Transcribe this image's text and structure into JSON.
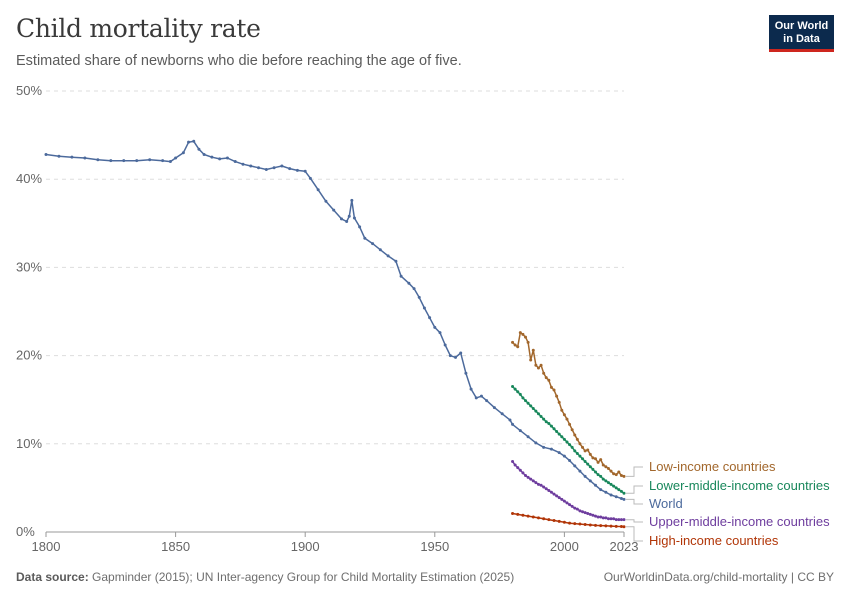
{
  "header": {
    "title": "Child mortality rate",
    "subtitle": "Estimated share of newborns who die before reaching the age of five.",
    "logo_line1": "Our World",
    "logo_line2": "in Data"
  },
  "footer": {
    "source_label": "Data source:",
    "source_text": " Gapminder (2015); UN Inter-agency Group for Child Mortality Estimation (2025)",
    "url_license": "OurWorldinData.org/child-mortality | CC BY"
  },
  "chart_data": {
    "type": "line",
    "title": "Child mortality rate",
    "subtitle": "Estimated share of newborns who die before reaching the age of five.",
    "xlabel": "",
    "ylabel": "",
    "xlim": [
      1800,
      2023
    ],
    "ylim": [
      0,
      50
    ],
    "x_ticks": [
      1800,
      1850,
      1900,
      1950,
      2000,
      2023
    ],
    "y_ticks": [
      0,
      10,
      20,
      30,
      40,
      50
    ],
    "y_tick_labels": [
      "0%",
      "10%",
      "20%",
      "30%",
      "40%",
      "50%"
    ],
    "grid": "horizontal dashed",
    "legend": "inline labels at right end of lines",
    "series": [
      {
        "name": "Low-income countries",
        "color": "#a2672c",
        "points": [
          [
            1980,
            21.5
          ],
          [
            1981,
            21.2
          ],
          [
            1982,
            21.0
          ],
          [
            1983,
            22.6
          ],
          [
            1984,
            22.4
          ],
          [
            1985,
            22.1
          ],
          [
            1986,
            21.5
          ],
          [
            1987,
            19.5
          ],
          [
            1988,
            20.6
          ],
          [
            1989,
            18.9
          ],
          [
            1990,
            18.6
          ],
          [
            1991,
            18.9
          ],
          [
            1992,
            18.0
          ],
          [
            1993,
            17.5
          ],
          [
            1994,
            17.2
          ],
          [
            1995,
            16.4
          ],
          [
            1996,
            16.1
          ],
          [
            1997,
            15.4
          ],
          [
            1998,
            14.7
          ],
          [
            1999,
            13.8
          ],
          [
            2000,
            13.3
          ],
          [
            2001,
            12.8
          ],
          [
            2002,
            12.2
          ],
          [
            2003,
            11.6
          ],
          [
            2004,
            11.0
          ],
          [
            2005,
            10.5
          ],
          [
            2006,
            10.0
          ],
          [
            2007,
            9.6
          ],
          [
            2008,
            9.2
          ],
          [
            2009,
            9.3
          ],
          [
            2010,
            8.8
          ],
          [
            2011,
            8.4
          ],
          [
            2012,
            8.3
          ],
          [
            2013,
            7.9
          ],
          [
            2014,
            8.2
          ],
          [
            2015,
            7.6
          ],
          [
            2016,
            7.4
          ],
          [
            2017,
            7.2
          ],
          [
            2018,
            6.9
          ],
          [
            2019,
            6.6
          ],
          [
            2020,
            6.5
          ],
          [
            2021,
            6.8
          ],
          [
            2022,
            6.4
          ],
          [
            2023,
            6.3
          ]
        ]
      },
      {
        "name": "Lower-middle-income countries",
        "color": "#18875b",
        "points": [
          [
            1980,
            16.5
          ],
          [
            1981,
            16.2
          ],
          [
            1982,
            15.9
          ],
          [
            1983,
            15.6
          ],
          [
            1984,
            15.2
          ],
          [
            1985,
            14.9
          ],
          [
            1986,
            14.6
          ],
          [
            1987,
            14.3
          ],
          [
            1988,
            14.0
          ],
          [
            1989,
            13.7
          ],
          [
            1990,
            13.4
          ],
          [
            1991,
            13.1
          ],
          [
            1992,
            12.8
          ],
          [
            1993,
            12.5
          ],
          [
            1994,
            12.3
          ],
          [
            1995,
            12.0
          ],
          [
            1996,
            11.7
          ],
          [
            1997,
            11.4
          ],
          [
            1998,
            11.1
          ],
          [
            1999,
            10.8
          ],
          [
            2000,
            10.5
          ],
          [
            2001,
            10.2
          ],
          [
            2002,
            9.9
          ],
          [
            2003,
            9.6
          ],
          [
            2004,
            9.2
          ],
          [
            2005,
            8.9
          ],
          [
            2006,
            8.6
          ],
          [
            2007,
            8.3
          ],
          [
            2008,
            8.0
          ],
          [
            2009,
            7.7
          ],
          [
            2010,
            7.4
          ],
          [
            2011,
            7.1
          ],
          [
            2012,
            6.8
          ],
          [
            2013,
            6.5
          ],
          [
            2014,
            6.3
          ],
          [
            2015,
            6.0
          ],
          [
            2016,
            5.8
          ],
          [
            2017,
            5.6
          ],
          [
            2018,
            5.4
          ],
          [
            2019,
            5.2
          ],
          [
            2020,
            5.0
          ],
          [
            2021,
            4.8
          ],
          [
            2022,
            4.6
          ],
          [
            2023,
            4.4
          ]
        ]
      },
      {
        "name": "World",
        "color": "#4c6a9c",
        "points": [
          [
            1800,
            42.8
          ],
          [
            1805,
            42.6
          ],
          [
            1810,
            42.5
          ],
          [
            1815,
            42.4
          ],
          [
            1820,
            42.2
          ],
          [
            1825,
            42.1
          ],
          [
            1830,
            42.1
          ],
          [
            1835,
            42.1
          ],
          [
            1840,
            42.2
          ],
          [
            1845,
            42.1
          ],
          [
            1848,
            42.0
          ],
          [
            1850,
            42.4
          ],
          [
            1853,
            43.0
          ],
          [
            1855,
            44.2
          ],
          [
            1857,
            44.3
          ],
          [
            1859,
            43.4
          ],
          [
            1861,
            42.8
          ],
          [
            1864,
            42.5
          ],
          [
            1867,
            42.3
          ],
          [
            1870,
            42.4
          ],
          [
            1873,
            42.0
          ],
          [
            1876,
            41.7
          ],
          [
            1879,
            41.5
          ],
          [
            1882,
            41.3
          ],
          [
            1885,
            41.1
          ],
          [
            1888,
            41.3
          ],
          [
            1891,
            41.5
          ],
          [
            1894,
            41.2
          ],
          [
            1897,
            41.0
          ],
          [
            1900,
            40.9
          ],
          [
            1902,
            40.1
          ],
          [
            1905,
            38.8
          ],
          [
            1908,
            37.5
          ],
          [
            1911,
            36.5
          ],
          [
            1914,
            35.5
          ],
          [
            1916,
            35.2
          ],
          [
            1917,
            35.8
          ],
          [
            1918,
            37.6
          ],
          [
            1919,
            35.6
          ],
          [
            1921,
            34.6
          ],
          [
            1923,
            33.3
          ],
          [
            1926,
            32.7
          ],
          [
            1929,
            32.0
          ],
          [
            1932,
            31.3
          ],
          [
            1935,
            30.7
          ],
          [
            1937,
            29.0
          ],
          [
            1940,
            28.2
          ],
          [
            1942,
            27.6
          ],
          [
            1944,
            26.6
          ],
          [
            1946,
            25.4
          ],
          [
            1948,
            24.3
          ],
          [
            1950,
            23.2
          ],
          [
            1952,
            22.6
          ],
          [
            1954,
            21.2
          ],
          [
            1956,
            20.0
          ],
          [
            1958,
            19.8
          ],
          [
            1960,
            20.3
          ],
          [
            1962,
            18.0
          ],
          [
            1964,
            16.2
          ],
          [
            1966,
            15.2
          ],
          [
            1968,
            15.4
          ],
          [
            1970,
            14.9
          ],
          [
            1973,
            14.1
          ],
          [
            1976,
            13.4
          ],
          [
            1979,
            12.7
          ],
          [
            1980,
            12.2
          ],
          [
            1983,
            11.5
          ],
          [
            1986,
            10.8
          ],
          [
            1989,
            10.1
          ],
          [
            1992,
            9.6
          ],
          [
            1995,
            9.4
          ],
          [
            1998,
            9.0
          ],
          [
            2000,
            8.6
          ],
          [
            2002,
            8.1
          ],
          [
            2004,
            7.5
          ],
          [
            2006,
            6.9
          ],
          [
            2008,
            6.3
          ],
          [
            2010,
            5.8
          ],
          [
            2012,
            5.3
          ],
          [
            2014,
            4.8
          ],
          [
            2016,
            4.5
          ],
          [
            2018,
            4.2
          ],
          [
            2020,
            4.0
          ],
          [
            2022,
            3.8
          ],
          [
            2023,
            3.7
          ]
        ]
      },
      {
        "name": "Upper-middle-income countries",
        "color": "#6e3d9e",
        "points": [
          [
            1980,
            8.0
          ],
          [
            1981,
            7.6
          ],
          [
            1982,
            7.3
          ],
          [
            1983,
            7.0
          ],
          [
            1984,
            6.7
          ],
          [
            1985,
            6.4
          ],
          [
            1986,
            6.2
          ],
          [
            1987,
            6.0
          ],
          [
            1988,
            5.8
          ],
          [
            1989,
            5.6
          ],
          [
            1990,
            5.4
          ],
          [
            1991,
            5.3
          ],
          [
            1992,
            5.1
          ],
          [
            1993,
            4.9
          ],
          [
            1994,
            4.7
          ],
          [
            1995,
            4.5
          ],
          [
            1996,
            4.3
          ],
          [
            1997,
            4.1
          ],
          [
            1998,
            3.9
          ],
          [
            1999,
            3.7
          ],
          [
            2000,
            3.5
          ],
          [
            2001,
            3.3
          ],
          [
            2002,
            3.1
          ],
          [
            2003,
            2.9
          ],
          [
            2004,
            2.7
          ],
          [
            2005,
            2.6
          ],
          [
            2006,
            2.4
          ],
          [
            2007,
            2.3
          ],
          [
            2008,
            2.2
          ],
          [
            2009,
            2.1
          ],
          [
            2010,
            2.0
          ],
          [
            2011,
            1.9
          ],
          [
            2012,
            1.8
          ],
          [
            2013,
            1.7
          ],
          [
            2014,
            1.7
          ],
          [
            2015,
            1.6
          ],
          [
            2016,
            1.6
          ],
          [
            2017,
            1.5
          ],
          [
            2018,
            1.5
          ],
          [
            2019,
            1.5
          ],
          [
            2020,
            1.4
          ],
          [
            2021,
            1.4
          ],
          [
            2022,
            1.4
          ],
          [
            2023,
            1.4
          ]
        ]
      },
      {
        "name": "High-income countries",
        "color": "#b13507",
        "points": [
          [
            1980,
            2.1
          ],
          [
            1982,
            2.0
          ],
          [
            1984,
            1.9
          ],
          [
            1986,
            1.8
          ],
          [
            1988,
            1.7
          ],
          [
            1990,
            1.6
          ],
          [
            1992,
            1.5
          ],
          [
            1994,
            1.4
          ],
          [
            1996,
            1.3
          ],
          [
            1998,
            1.2
          ],
          [
            2000,
            1.1
          ],
          [
            2002,
            1.0
          ],
          [
            2004,
            0.95
          ],
          [
            2006,
            0.9
          ],
          [
            2008,
            0.85
          ],
          [
            2010,
            0.8
          ],
          [
            2012,
            0.75
          ],
          [
            2014,
            0.72
          ],
          [
            2016,
            0.7
          ],
          [
            2018,
            0.67
          ],
          [
            2020,
            0.64
          ],
          [
            2022,
            0.62
          ],
          [
            2023,
            0.6
          ]
        ]
      }
    ]
  }
}
